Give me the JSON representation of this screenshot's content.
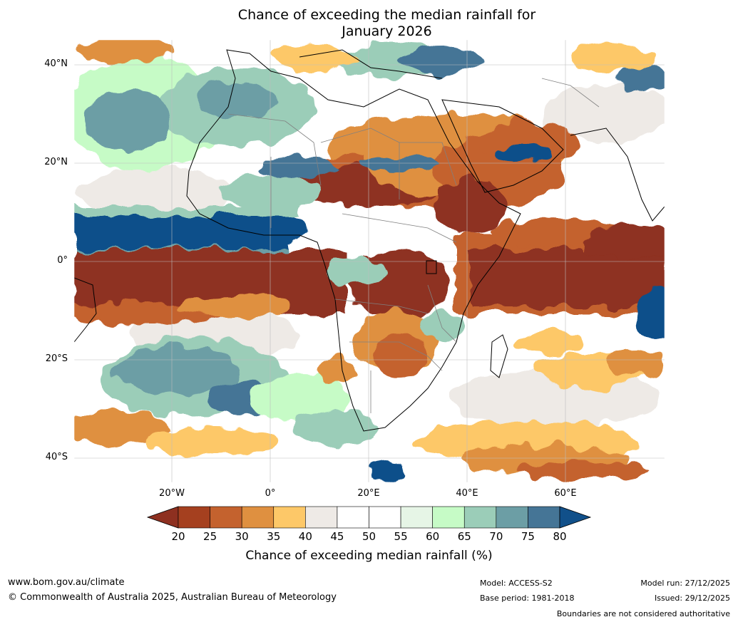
{
  "title_line1": "Chance of exceeding the median rainfall for",
  "title_line2": "January 2026",
  "lat_labels": [
    "40°N",
    "20°N",
    "0°",
    "20°S",
    "40°S"
  ],
  "lon_labels": [
    "20°W",
    "0°",
    "20°E",
    "40°E",
    "60°E"
  ],
  "colorbar": {
    "ticks": [
      "20",
      "25",
      "30",
      "35",
      "40",
      "45",
      "50",
      "55",
      "60",
      "65",
      "70",
      "75",
      "80"
    ],
    "label": "Chance of exceeding median rainfall (%)",
    "colors": [
      "#8e3020",
      "#a5401f",
      "#c4622e",
      "#df9040",
      "#fdc868",
      "#eeeae6",
      "#ffffff",
      "#ffffff",
      "#e6f5e6",
      "#c6fbc6",
      "#9bcdb8",
      "#6c9ea5",
      "#457596",
      "#11508a",
      "#2a1a5e"
    ]
  },
  "footer": {
    "url": "www.bom.gov.au/climate",
    "copyright": "© Commonwealth of Australia 2025, Australian Bureau of Meteorology",
    "model": "Model: ACCESS-S2",
    "base_period": "Base period: 1981-2018",
    "model_run": "Model run: 27/12/2025",
    "issued": "Issued: 29/12/2025",
    "boundaries": "Boundaries are not considered authoritative"
  }
}
